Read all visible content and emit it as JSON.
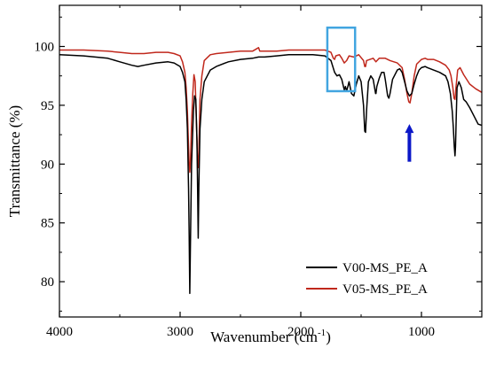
{
  "chart_data": {
    "type": "line",
    "xlabel": "Wavenumber (cm",
    "xlabel_sup": "-1",
    "xlabel_close": ")",
    "ylabel": "Transmittance (%)",
    "xlim": [
      4000,
      500
    ],
    "x_reversed": true,
    "ylim": [
      77,
      103.5
    ],
    "x_ticks": [
      4000,
      3000,
      2000,
      1000
    ],
    "y_ticks": [
      80,
      85,
      90,
      95,
      100
    ],
    "legend_position": "bottom-right",
    "grid": false,
    "series": [
      {
        "name": "V00-MS_PE_A",
        "color": "#000000",
        "points": [
          [
            4000,
            99.3
          ],
          [
            3800,
            99.2
          ],
          [
            3600,
            99.0
          ],
          [
            3500,
            98.7
          ],
          [
            3400,
            98.4
          ],
          [
            3350,
            98.3
          ],
          [
            3300,
            98.4
          ],
          [
            3200,
            98.6
          ],
          [
            3100,
            98.7
          ],
          [
            3050,
            98.6
          ],
          [
            3000,
            98.3
          ],
          [
            2980,
            97.8
          ],
          [
            2960,
            97.0
          ],
          [
            2950,
            95.5
          ],
          [
            2940,
            93.0
          ],
          [
            2930,
            88.0
          ],
          [
            2925,
            84.0
          ],
          [
            2920,
            79.0
          ],
          [
            2915,
            83.0
          ],
          [
            2905,
            90.0
          ],
          [
            2890,
            94.5
          ],
          [
            2880,
            95.8
          ],
          [
            2870,
            95.5
          ],
          [
            2860,
            92.0
          ],
          [
            2855,
            88.0
          ],
          [
            2850,
            83.7
          ],
          [
            2845,
            88.0
          ],
          [
            2835,
            93.0
          ],
          [
            2820,
            95.5
          ],
          [
            2800,
            97.0
          ],
          [
            2750,
            98.0
          ],
          [
            2700,
            98.3
          ],
          [
            2600,
            98.7
          ],
          [
            2500,
            98.9
          ],
          [
            2400,
            99.0
          ],
          [
            2350,
            99.1
          ],
          [
            2300,
            99.1
          ],
          [
            2200,
            99.2
          ],
          [
            2100,
            99.3
          ],
          [
            2000,
            99.3
          ],
          [
            1900,
            99.3
          ],
          [
            1800,
            99.2
          ],
          [
            1750,
            98.8
          ],
          [
            1720,
            97.8
          ],
          [
            1700,
            97.5
          ],
          [
            1680,
            97.6
          ],
          [
            1660,
            97.2
          ],
          [
            1640,
            96.3
          ],
          [
            1630,
            96.6
          ],
          [
            1620,
            96.2
          ],
          [
            1600,
            97.0
          ],
          [
            1580,
            96.0
          ],
          [
            1560,
            95.8
          ],
          [
            1540,
            96.8
          ],
          [
            1520,
            97.5
          ],
          [
            1500,
            97.0
          ],
          [
            1480,
            95.0
          ],
          [
            1470,
            92.8
          ],
          [
            1463,
            92.7
          ],
          [
            1455,
            94.5
          ],
          [
            1440,
            97.0
          ],
          [
            1420,
            97.5
          ],
          [
            1400,
            97.2
          ],
          [
            1380,
            96.0
          ],
          [
            1377,
            96.0
          ],
          [
            1370,
            96.6
          ],
          [
            1350,
            97.3
          ],
          [
            1330,
            97.8
          ],
          [
            1310,
            97.8
          ],
          [
            1300,
            97.2
          ],
          [
            1280,
            95.8
          ],
          [
            1270,
            95.6
          ],
          [
            1260,
            96.0
          ],
          [
            1240,
            97.2
          ],
          [
            1200,
            98.0
          ],
          [
            1180,
            98.1
          ],
          [
            1160,
            97.8
          ],
          [
            1140,
            97.0
          ],
          [
            1120,
            96.2
          ],
          [
            1100,
            95.8
          ],
          [
            1080,
            96.0
          ],
          [
            1060,
            96.8
          ],
          [
            1040,
            97.5
          ],
          [
            1020,
            98.0
          ],
          [
            1000,
            98.2
          ],
          [
            970,
            98.3
          ],
          [
            950,
            98.2
          ],
          [
            900,
            98.0
          ],
          [
            850,
            97.8
          ],
          [
            800,
            97.5
          ],
          [
            780,
            97.0
          ],
          [
            760,
            96.0
          ],
          [
            745,
            94.5
          ],
          [
            735,
            93.0
          ],
          [
            728,
            91.5
          ],
          [
            722,
            90.7
          ],
          [
            718,
            91.5
          ],
          [
            712,
            94.0
          ],
          [
            705,
            96.5
          ],
          [
            690,
            97.0
          ],
          [
            670,
            96.5
          ],
          [
            650,
            95.5
          ],
          [
            630,
            95.3
          ],
          [
            600,
            94.8
          ],
          [
            560,
            94.0
          ],
          [
            530,
            93.4
          ],
          [
            500,
            93.3
          ]
        ]
      },
      {
        "name": "V05-MS_PE_A",
        "color": "#c0281c",
        "points": [
          [
            4000,
            99.7
          ],
          [
            3800,
            99.7
          ],
          [
            3600,
            99.6
          ],
          [
            3500,
            99.5
          ],
          [
            3400,
            99.4
          ],
          [
            3300,
            99.4
          ],
          [
            3200,
            99.5
          ],
          [
            3100,
            99.5
          ],
          [
            3050,
            99.4
          ],
          [
            3000,
            99.2
          ],
          [
            2980,
            98.7
          ],
          [
            2960,
            97.8
          ],
          [
            2950,
            96.5
          ],
          [
            2940,
            94.5
          ],
          [
            2930,
            91.5
          ],
          [
            2925,
            90.0
          ],
          [
            2920,
            89.3
          ],
          [
            2915,
            90.0
          ],
          [
            2905,
            93.5
          ],
          [
            2895,
            96.0
          ],
          [
            2885,
            97.6
          ],
          [
            2875,
            97.0
          ],
          [
            2865,
            93.5
          ],
          [
            2855,
            90.0
          ],
          [
            2850,
            89.7
          ],
          [
            2845,
            91.0
          ],
          [
            2835,
            95.5
          ],
          [
            2820,
            97.5
          ],
          [
            2800,
            98.8
          ],
          [
            2750,
            99.3
          ],
          [
            2700,
            99.4
          ],
          [
            2600,
            99.5
          ],
          [
            2500,
            99.6
          ],
          [
            2400,
            99.6
          ],
          [
            2350,
            99.9
          ],
          [
            2340,
            99.6
          ],
          [
            2300,
            99.6
          ],
          [
            2200,
            99.6
          ],
          [
            2100,
            99.7
          ],
          [
            2000,
            99.7
          ],
          [
            1900,
            99.7
          ],
          [
            1800,
            99.7
          ],
          [
            1750,
            99.5
          ],
          [
            1730,
            99.0
          ],
          [
            1720,
            98.9
          ],
          [
            1710,
            99.2
          ],
          [
            1680,
            99.3
          ],
          [
            1660,
            99.0
          ],
          [
            1640,
            98.6
          ],
          [
            1620,
            98.8
          ],
          [
            1600,
            99.2
          ],
          [
            1560,
            99.1
          ],
          [
            1520,
            99.3
          ],
          [
            1480,
            98.8
          ],
          [
            1470,
            98.3
          ],
          [
            1463,
            98.3
          ],
          [
            1455,
            98.8
          ],
          [
            1400,
            99.0
          ],
          [
            1377,
            98.7
          ],
          [
            1350,
            99.0
          ],
          [
            1300,
            99.0
          ],
          [
            1260,
            98.8
          ],
          [
            1200,
            98.6
          ],
          [
            1160,
            98.2
          ],
          [
            1140,
            97.2
          ],
          [
            1120,
            96.0
          ],
          [
            1105,
            95.3
          ],
          [
            1095,
            95.2
          ],
          [
            1080,
            96.0
          ],
          [
            1060,
            97.5
          ],
          [
            1040,
            98.5
          ],
          [
            1000,
            98.9
          ],
          [
            970,
            99.0
          ],
          [
            950,
            98.9
          ],
          [
            900,
            98.9
          ],
          [
            850,
            98.7
          ],
          [
            800,
            98.4
          ],
          [
            770,
            98.0
          ],
          [
            755,
            97.5
          ],
          [
            740,
            96.5
          ],
          [
            730,
            95.6
          ],
          [
            722,
            95.5
          ],
          [
            714,
            96.5
          ],
          [
            700,
            98.0
          ],
          [
            680,
            98.2
          ],
          [
            650,
            97.6
          ],
          [
            600,
            96.8
          ],
          [
            550,
            96.4
          ],
          [
            500,
            96.1
          ]
        ]
      }
    ],
    "annotations": {
      "highlight_box": {
        "x_from": 1780,
        "x_to": 1550,
        "y_from": 101.6,
        "y_to": 96.2,
        "color": "#42a5e0"
      },
      "arrow": {
        "x": 1100,
        "y_from": 90.2,
        "y_to": 93.4,
        "color": "#0c18c8"
      }
    }
  }
}
